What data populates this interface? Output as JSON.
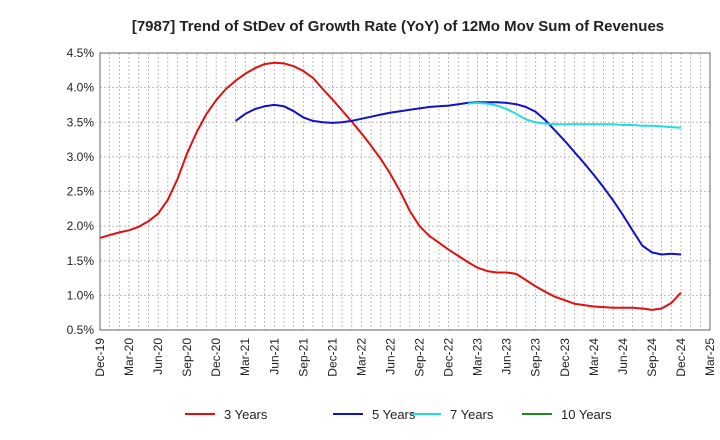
{
  "chart_data": {
    "type": "line",
    "title": "[7987]  Trend of StDev of Growth Rate (YoY) of 12Mo Mov Sum of Revenues",
    "xlabel": "",
    "ylabel": "",
    "ylim": [
      0.5,
      4.5
    ],
    "y_ticks": [
      "0.5%",
      "1.0%",
      "1.5%",
      "2.0%",
      "2.5%",
      "3.0%",
      "3.5%",
      "4.0%",
      "4.5%"
    ],
    "y_tick_values": [
      0.5,
      1.0,
      1.5,
      2.0,
      2.5,
      3.0,
      3.5,
      4.0,
      4.5
    ],
    "x_ticks": [
      "Dec-19",
      "Mar-20",
      "Jun-20",
      "Sep-20",
      "Dec-20",
      "Mar-21",
      "Jun-21",
      "Sep-21",
      "Dec-21",
      "Mar-22",
      "Jun-22",
      "Sep-22",
      "Dec-22",
      "Mar-23",
      "Jun-23",
      "Sep-23",
      "Dec-23",
      "Mar-24",
      "Jun-24",
      "Sep-24",
      "Dec-24",
      "Mar-25"
    ],
    "x_range_months": [
      0,
      63
    ],
    "grid": true,
    "legend_position": "bottom",
    "series": [
      {
        "name": "3 Years",
        "color": "#dd1111",
        "x": [
          0,
          1,
          2,
          3,
          4,
          5,
          6,
          7,
          8,
          9,
          10,
          11,
          12,
          13,
          14,
          15,
          16,
          17,
          18,
          19,
          20,
          21,
          22,
          23,
          24,
          25,
          26,
          27,
          28,
          29,
          30,
          31,
          32,
          33,
          34,
          35,
          36,
          37,
          38,
          39,
          40,
          41,
          42,
          43,
          44,
          45,
          46,
          47,
          48,
          49,
          50,
          51,
          52,
          53,
          54,
          55,
          56,
          57,
          58,
          59,
          60
        ],
        "values": [
          1.83,
          1.87,
          1.91,
          1.94,
          1.99,
          2.07,
          2.18,
          2.38,
          2.68,
          3.05,
          3.36,
          3.62,
          3.82,
          3.98,
          4.1,
          4.2,
          4.28,
          4.34,
          4.36,
          4.35,
          4.31,
          4.24,
          4.14,
          3.98,
          3.83,
          3.67,
          3.51,
          3.34,
          3.16,
          2.97,
          2.75,
          2.5,
          2.22,
          2.0,
          1.86,
          1.76,
          1.66,
          1.57,
          1.48,
          1.4,
          1.35,
          1.33,
          1.33,
          1.31,
          1.22,
          1.13,
          1.05,
          0.98,
          0.93,
          0.88,
          0.86,
          0.84,
          0.83,
          0.82,
          0.82,
          0.82,
          0.81,
          0.79,
          0.81,
          0.89,
          1.04
        ]
      },
      {
        "name": "5 Years",
        "color": "#1111cc",
        "x": [
          14,
          15,
          16,
          17,
          18,
          19,
          20,
          21,
          22,
          23,
          24,
          25,
          26,
          27,
          28,
          29,
          30,
          31,
          32,
          33,
          34,
          35,
          36,
          37,
          38,
          39,
          40,
          41,
          42,
          43,
          44,
          45,
          46,
          47,
          48,
          49,
          50,
          51,
          52,
          53,
          54,
          55,
          56,
          57,
          58,
          59,
          60
        ],
        "values": [
          3.52,
          3.62,
          3.69,
          3.73,
          3.75,
          3.73,
          3.66,
          3.57,
          3.52,
          3.5,
          3.49,
          3.5,
          3.52,
          3.55,
          3.58,
          3.61,
          3.64,
          3.66,
          3.68,
          3.7,
          3.72,
          3.73,
          3.74,
          3.76,
          3.78,
          3.79,
          3.79,
          3.79,
          3.78,
          3.76,
          3.72,
          3.65,
          3.53,
          3.38,
          3.23,
          3.07,
          2.91,
          2.74,
          2.56,
          2.37,
          2.16,
          1.94,
          1.72,
          1.62,
          1.59,
          1.6,
          1.59
        ]
      },
      {
        "name": "7 Years",
        "color": "#22dddd",
        "x": [
          38,
          39,
          40,
          41,
          42,
          43,
          44,
          45,
          46,
          47,
          48,
          49,
          50,
          51,
          52,
          53,
          54,
          55,
          56,
          57,
          58,
          59,
          60
        ],
        "values": [
          3.77,
          3.78,
          3.77,
          3.74,
          3.69,
          3.62,
          3.54,
          3.5,
          3.48,
          3.47,
          3.47,
          3.47,
          3.47,
          3.47,
          3.47,
          3.47,
          3.46,
          3.46,
          3.45,
          3.45,
          3.44,
          3.43,
          3.42
        ]
      },
      {
        "name": "10 Years",
        "color": "#228822",
        "x": [],
        "values": []
      }
    ]
  }
}
